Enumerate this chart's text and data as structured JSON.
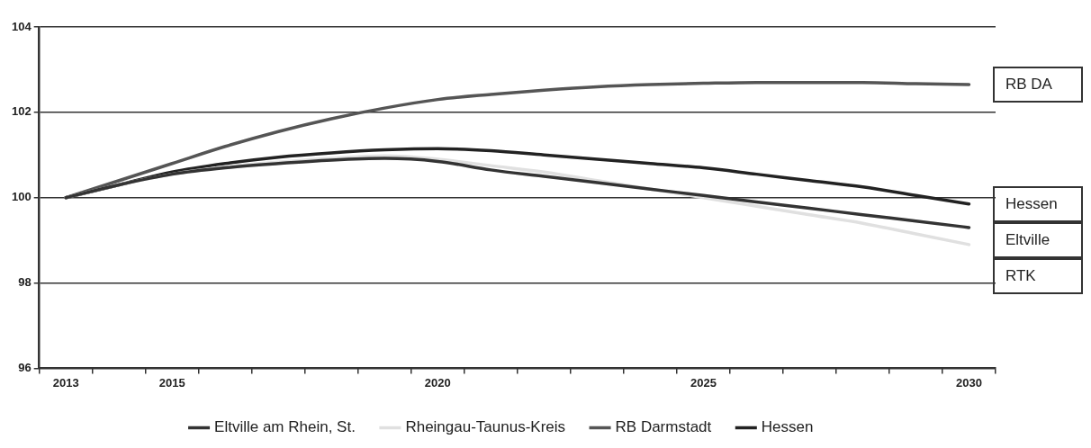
{
  "chart_data": {
    "type": "line",
    "categories": [
      "2013",
      null,
      "2015",
      null,
      null,
      null,
      null,
      "2020",
      null,
      null,
      null,
      null,
      "2025",
      null,
      null,
      null,
      null,
      "2030"
    ],
    "series": [
      {
        "name": "Eltville am Rhein, St.",
        "color": "#333333",
        "values": [
          100,
          100.3,
          100.55,
          100.7,
          100.8,
          100.88,
          100.92,
          100.85,
          100.65,
          100.5,
          100.35,
          100.2,
          100.05,
          99.9,
          99.75,
          99.6,
          99.45,
          99.3
        ]
      },
      {
        "name": "Rheingau-Taunus-Kreis",
        "color": "#e0e0e0",
        "values": [
          100,
          100.3,
          100.55,
          100.72,
          100.83,
          100.92,
          100.98,
          100.9,
          100.75,
          100.6,
          100.4,
          100.2,
          100,
          99.8,
          99.6,
          99.4,
          99.15,
          98.9
        ]
      },
      {
        "name": "RB Darmstadt",
        "color": "#555555",
        "values": [
          100,
          100.4,
          100.8,
          101.2,
          101.55,
          101.85,
          102.1,
          102.3,
          102.42,
          102.52,
          102.6,
          102.65,
          102.68,
          102.7,
          102.7,
          102.7,
          102.67,
          102.65
        ]
      },
      {
        "name": "Hessen",
        "color": "#222222",
        "values": [
          100,
          100.3,
          100.6,
          100.8,
          100.95,
          101.05,
          101.12,
          101.15,
          101.1,
          101,
          100.9,
          100.8,
          100.7,
          100.55,
          100.4,
          100.25,
          100.05,
          99.85
        ]
      }
    ],
    "ylim": [
      96,
      104
    ],
    "yticks": [
      96,
      98,
      100,
      102,
      104
    ],
    "grid": "y",
    "legend": "bottom",
    "marker": "none",
    "line_style": "solid",
    "annotations": [
      {
        "text": "RB DA",
        "x": "2030",
        "y": 102.65
      },
      {
        "text": "Hessen",
        "x": "2030",
        "y": 99.85
      },
      {
        "text": "Eltville",
        "x": "2030",
        "y": 99.3
      },
      {
        "text": "RTK",
        "x": "2030",
        "y": 98.9
      }
    ]
  }
}
